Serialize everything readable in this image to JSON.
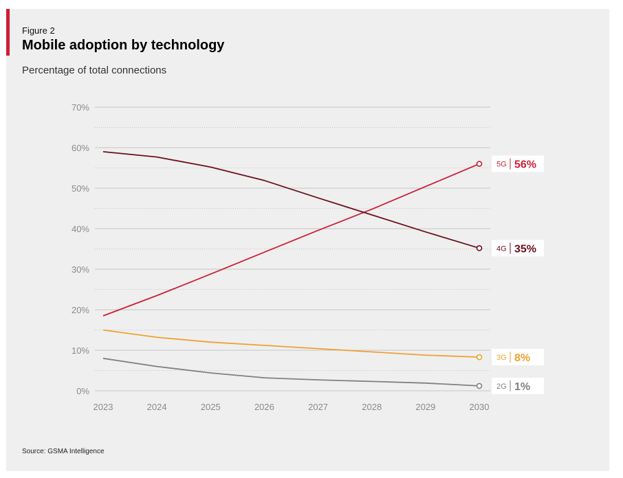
{
  "figure_label": "Figure 2",
  "title": "Mobile adoption by technology",
  "subtitle": "Percentage of total connections",
  "source": "Source: GSMA Intelligence",
  "colors": {
    "5G": "#cc1f36",
    "4G": "#6b0f1a",
    "3G": "#f0a030",
    "2G": "#808080",
    "accent": "#cc1f36"
  },
  "chart_data": {
    "type": "line",
    "x": [
      2023,
      2024,
      2025,
      2026,
      2027,
      2028,
      2029,
      2030
    ],
    "x_tick_labels": [
      "2023",
      "2024",
      "2025",
      "2026",
      "2027",
      "2028",
      "2029",
      "2030"
    ],
    "y_tick_labels": [
      "0%",
      "10%",
      "20%",
      "30%",
      "40%",
      "50%",
      "60%",
      "70%"
    ],
    "y_ticks": [
      0,
      10,
      20,
      30,
      40,
      50,
      60,
      70
    ],
    "ylim": [
      0,
      70
    ],
    "grid": true,
    "series": [
      {
        "name": "5G",
        "end_label": "56%",
        "values": [
          18.5,
          23.5,
          28.8,
          34.2,
          39.6,
          44.8,
          50.4,
          56
        ]
      },
      {
        "name": "4G",
        "end_label": "35%",
        "values": [
          59,
          57.7,
          55.2,
          51.9,
          47.6,
          43.4,
          39.2,
          35.2
        ]
      },
      {
        "name": "3G",
        "end_label": "8%",
        "values": [
          15,
          13.2,
          12,
          11.2,
          10.4,
          9.6,
          8.8,
          8.3
        ]
      },
      {
        "name": "2G",
        "end_label": "1%",
        "values": [
          8,
          6,
          4.4,
          3.2,
          2.7,
          2.3,
          1.9,
          1.2
        ]
      }
    ]
  }
}
